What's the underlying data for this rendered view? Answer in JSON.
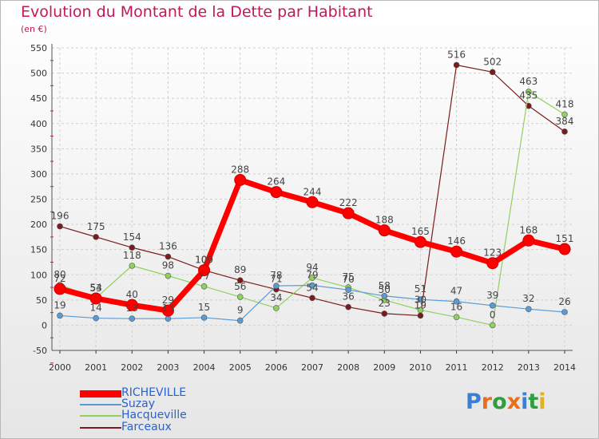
{
  "chart_title": "Evolution du Montant de la Dette par Habitant",
  "chart_subtitle": "(en €)",
  "logo_text": "Proxiti",
  "chart_data": {
    "type": "line",
    "title": "Evolution du Montant de la Dette par Habitant",
    "subtitle": "(en €)",
    "x": [
      "2000",
      "2001",
      "2002",
      "2003",
      "2004",
      "2005",
      "2006",
      "2007",
      "2008",
      "2009",
      "2010",
      "2011",
      "2012",
      "2013",
      "2014"
    ],
    "y_ticks": [
      "-50",
      "0",
      "50",
      "100",
      "150",
      "200",
      "250",
      "300",
      "350",
      "400",
      "450",
      "500",
      "550"
    ],
    "ylim": [
      -50,
      550
    ],
    "grid": true,
    "legend_position": "bottom-left",
    "series": [
      {
        "name": "RICHEVILLE",
        "color": "#ff0000",
        "values": [
          72,
          53,
          40,
          29,
          109,
          288,
          264,
          244,
          222,
          188,
          165,
          146,
          123,
          168,
          151
        ]
      },
      {
        "name": "Suzay",
        "color": "#5b9bd5",
        "values": [
          19,
          14,
          13,
          13,
          15,
          9,
          78,
          79,
          70,
          58,
          51,
          47,
          39,
          32,
          26
        ]
      },
      {
        "name": "Hacqueville",
        "color": "#90d060",
        "values": [
          80,
          54,
          118,
          98,
          77,
          56,
          34,
          94,
          75,
          50,
          30,
          16,
          0,
          463,
          418
        ]
      },
      {
        "name": "Farceaux",
        "color": "#7a1c1c",
        "values": [
          196,
          175,
          154,
          136,
          109,
          89,
          71,
          54,
          36,
          23,
          19,
          516,
          502,
          435,
          384
        ]
      }
    ],
    "data_labels": [
      [
        "72",
        "53",
        "40",
        "29",
        "109",
        "288",
        "264",
        "244",
        "222",
        "188",
        "165",
        "146",
        "123",
        "168",
        "151"
      ],
      [
        "19",
        "14",
        "13",
        "13",
        "15",
        "9",
        "78",
        "79",
        "70",
        "58",
        "51",
        "47",
        "39",
        "32",
        "26"
      ],
      [
        "80",
        "54",
        "118",
        "98",
        "77",
        "56",
        "34",
        "94",
        "75",
        "50",
        "30",
        "16",
        "0",
        "463",
        "418"
      ],
      [
        "196",
        "175",
        "154",
        "136",
        "109",
        "89",
        "71",
        "54",
        "36",
        "23",
        "19",
        "516",
        "502",
        "435",
        "384"
      ]
    ]
  }
}
